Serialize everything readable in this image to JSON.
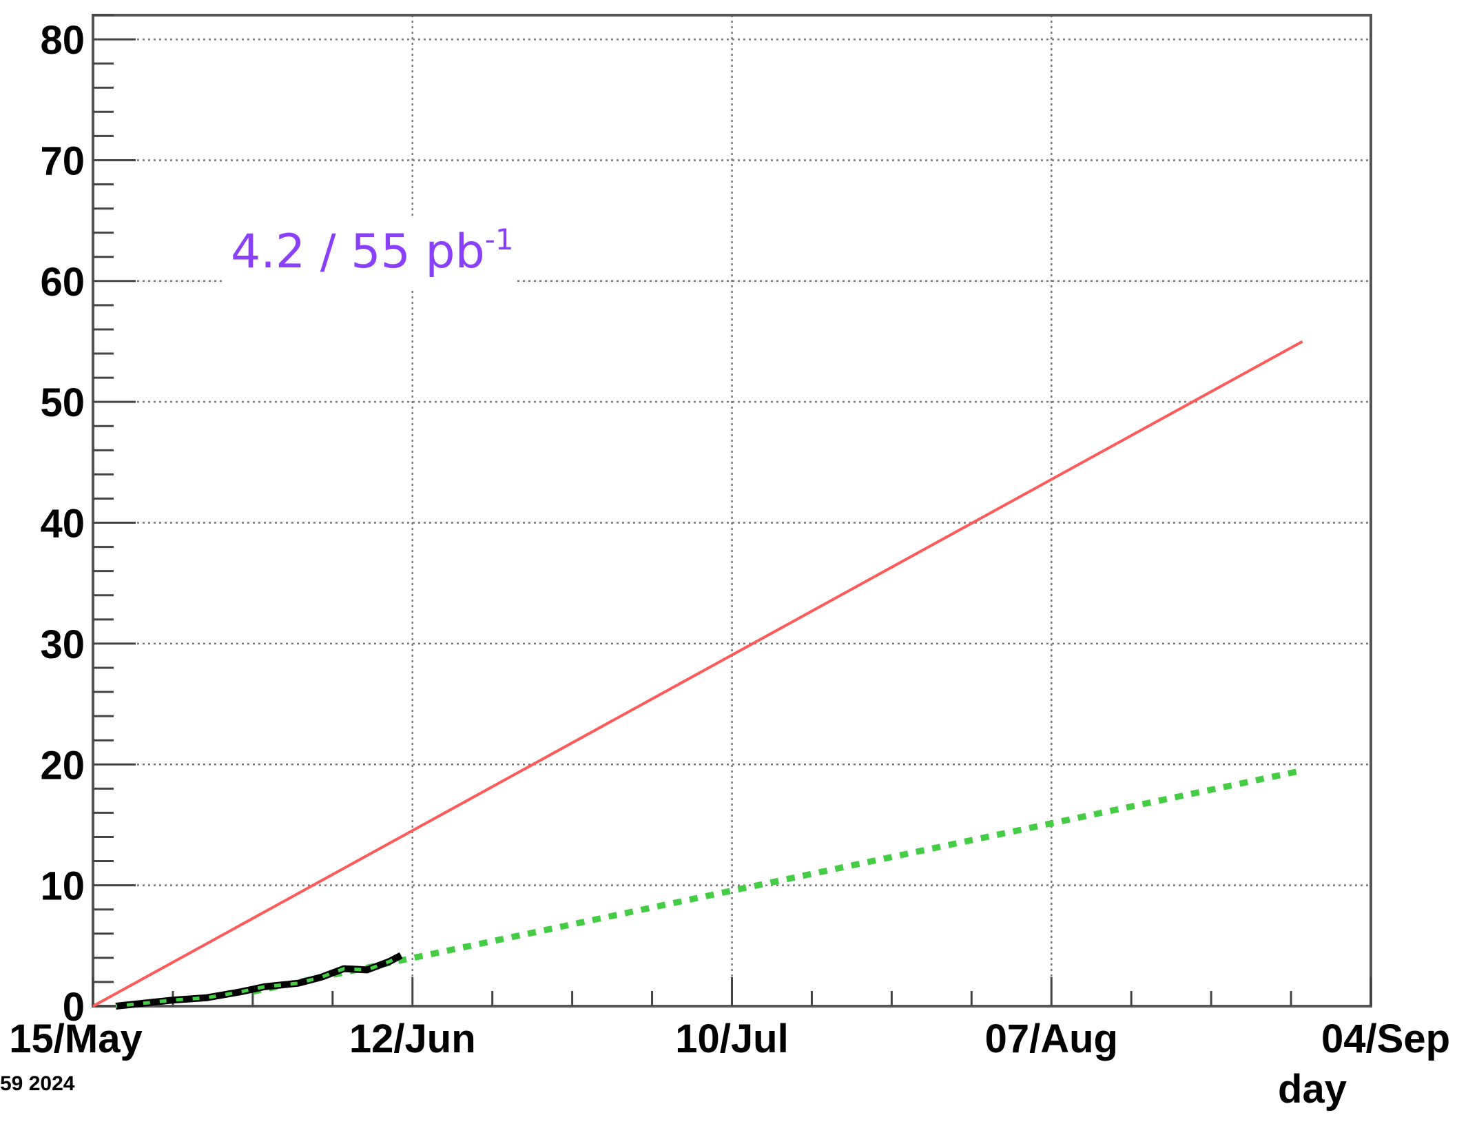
{
  "chart_data": {
    "type": "line",
    "x_type": "date",
    "xlabel": "day",
    "ylabel": "",
    "xlim": [
      "2024-05-15",
      "2024-09-04"
    ],
    "ylim": [
      0,
      82
    ],
    "x_ticks": [
      "2024-05-15",
      "2024-06-12",
      "2024-07-10",
      "2024-08-07",
      "2024-09-04"
    ],
    "x_tick_labels": [
      "15/May",
      "12/Jun",
      "10/Jul",
      "07/Aug",
      "04/Sep"
    ],
    "y_ticks": [
      0,
      10,
      20,
      30,
      40,
      50,
      60,
      70,
      80
    ],
    "y_tick_labels": [
      "0",
      "10",
      "20",
      "30",
      "40",
      "50",
      "60",
      "70",
      "80"
    ],
    "grid": true,
    "annotation": {
      "text": "4.2 / 55 pb",
      "superscript": "-1",
      "color": "#8a3ffc"
    },
    "footer_text": "59 2024",
    "series": [
      {
        "style": "solid",
        "color": "#ff5a5a",
        "x": [
          "2024-05-15",
          "2024-08-29"
        ],
        "y": [
          0,
          55
        ]
      },
      {
        "style": "dotted",
        "color": "#44cc44",
        "x": [
          "2024-05-29",
          "2024-08-29"
        ],
        "y": [
          1.2,
          19.5
        ]
      },
      {
        "style": "solid",
        "color": "#000000",
        "x": [
          "2024-05-17",
          "2024-05-19",
          "2024-05-22",
          "2024-05-25",
          "2024-05-28",
          "2024-05-30",
          "2024-06-02",
          "2024-06-04",
          "2024-06-06",
          "2024-06-08",
          "2024-06-10",
          "2024-06-11"
        ],
        "y": [
          0.0,
          0.2,
          0.5,
          0.7,
          1.2,
          1.6,
          1.9,
          2.4,
          3.1,
          3.0,
          3.7,
          4.2
        ]
      }
    ]
  }
}
